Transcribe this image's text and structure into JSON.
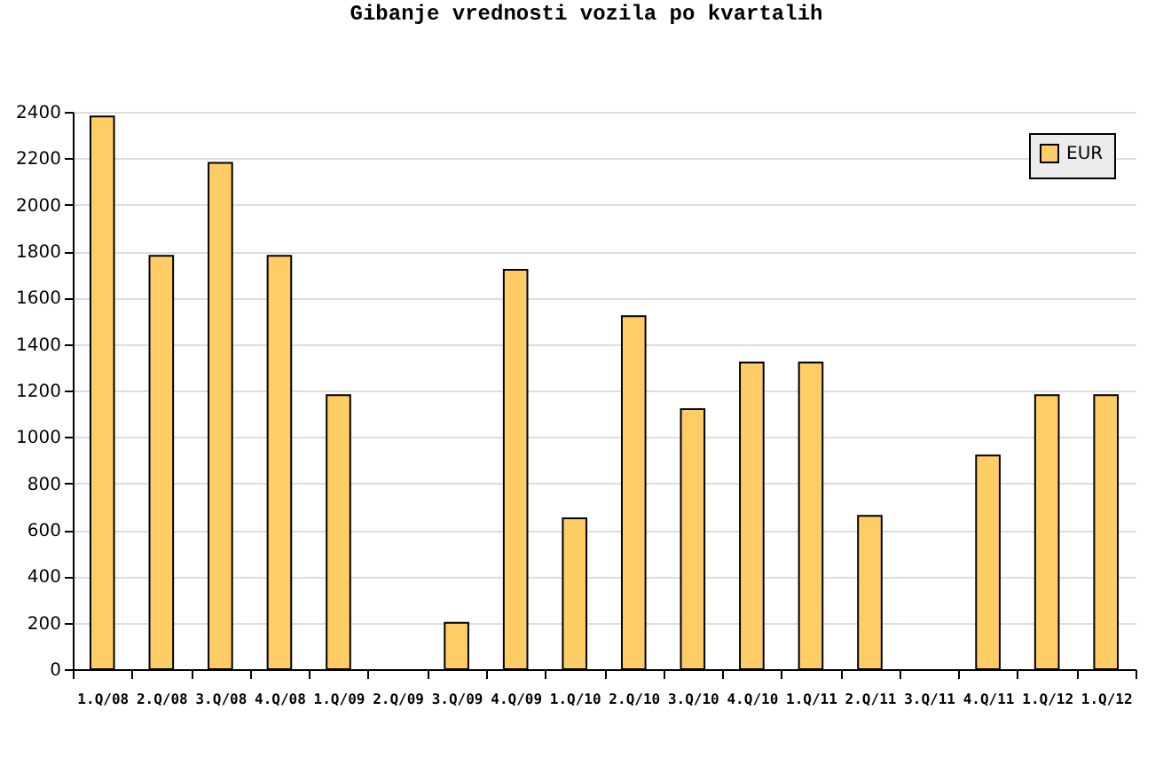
{
  "chart_data": {
    "type": "bar",
    "title": "Gibanje vrednosti vozila po kvartalih",
    "categories": [
      "1.Q/08",
      "2.Q/08",
      "3.Q/08",
      "4.Q/08",
      "1.Q/09",
      "2.Q/09",
      "3.Q/09",
      "4.Q/09",
      "1.Q/10",
      "2.Q/10",
      "3.Q/10",
      "4.Q/10",
      "1.Q/11",
      "2.Q/11",
      "3.Q/11",
      "4.Q/11",
      "1.Q/12",
      "1.Q/12"
    ],
    "series": [
      {
        "name": "EUR",
        "color": "#ffcc66",
        "values": [
          2380,
          1780,
          2180,
          1780,
          1180,
          null,
          200,
          1720,
          650,
          1520,
          1120,
          1320,
          1320,
          660,
          null,
          920,
          1180,
          1180
        ]
      }
    ],
    "ylim": [
      0,
      2400
    ],
    "yticks": [
      0,
      200,
      400,
      600,
      800,
      1000,
      1200,
      1400,
      1600,
      1800,
      2000,
      2200,
      2400
    ],
    "grid": "y",
    "legend": "top right"
  }
}
